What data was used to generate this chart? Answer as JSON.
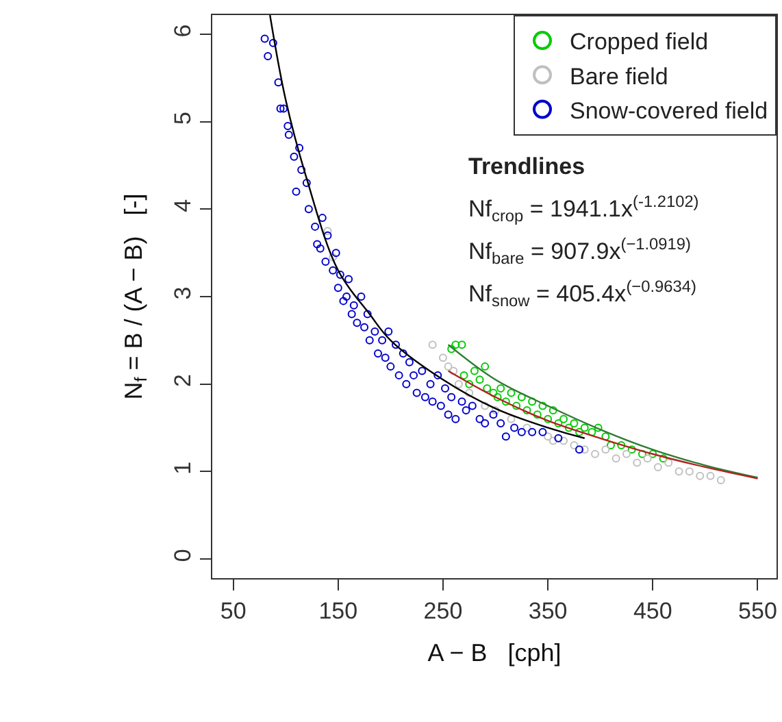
{
  "chart_data": {
    "type": "scatter",
    "xlabel": "A − B   [cph]",
    "ylabel": "N$_{f}$ = B / (A − B)   [-]",
    "annotations": [
      "Trendlines",
      "Nf$_{crop}$ = 1941.1x$^{(-1.2102)}$",
      "Nf$_{bare}$ = 907.9x$^{(−1.0919)}$",
      "Nf$_{snow}$ = 405.4x$^{(−0.9634)}$"
    ],
    "xlim": [
      30,
      568
    ],
    "ylim": [
      -0.22,
      6.22
    ],
    "xticks": [
      50,
      150,
      250,
      350,
      450,
      550
    ],
    "yticks": [
      0,
      1,
      2,
      3,
      4,
      5,
      6
    ],
    "legend": "top right",
    "series": [
      {
        "name": "Cropped field",
        "marker": "circle",
        "color": "#00cc00",
        "x": [
          258,
          262,
          268,
          270,
          275,
          280,
          285,
          290,
          292,
          298,
          302,
          305,
          310,
          315,
          320,
          325,
          330,
          335,
          340,
          345,
          350,
          355,
          360,
          365,
          370,
          375,
          380,
          385,
          392,
          398,
          405,
          410,
          420,
          430,
          440,
          450,
          460
        ],
        "values": [
          2.4,
          2.45,
          2.45,
          2.1,
          2.0,
          2.15,
          2.05,
          2.2,
          1.95,
          1.9,
          1.85,
          1.95,
          1.8,
          1.9,
          1.75,
          1.85,
          1.7,
          1.8,
          1.65,
          1.75,
          1.6,
          1.7,
          1.55,
          1.6,
          1.5,
          1.55,
          1.45,
          1.5,
          1.45,
          1.5,
          1.4,
          1.3,
          1.3,
          1.25,
          1.2,
          1.2,
          1.15
        ]
      },
      {
        "name": "Bare field",
        "marker": "circle",
        "color": "#c0c0c0",
        "x": [
          140,
          145,
          240,
          250,
          255,
          260,
          265,
          275,
          290,
          300,
          315,
          330,
          350,
          355,
          365,
          375,
          385,
          395,
          405,
          415,
          425,
          435,
          445,
          455,
          465,
          475,
          485,
          495,
          505,
          515
        ],
        "values": [
          3.75,
          3.45,
          2.45,
          2.3,
          2.2,
          2.15,
          2.0,
          1.9,
          1.75,
          1.7,
          1.6,
          1.5,
          1.4,
          1.35,
          1.35,
          1.3,
          1.25,
          1.2,
          1.25,
          1.15,
          1.2,
          1.1,
          1.15,
          1.05,
          1.1,
          1.0,
          1.0,
          0.95,
          0.95,
          0.9
        ]
      },
      {
        "name": "Snow-covered field",
        "marker": "circle",
        "color": "#0000cc",
        "x": [
          80,
          83,
          88,
          93,
          95,
          98,
          102,
          103,
          108,
          113,
          110,
          115,
          120,
          122,
          128,
          130,
          133,
          135,
          138,
          140,
          145,
          148,
          150,
          152,
          155,
          158,
          160,
          163,
          165,
          168,
          172,
          175,
          178,
          180,
          185,
          188,
          192,
          195,
          198,
          200,
          205,
          208,
          212,
          215,
          218,
          222,
          225,
          230,
          233,
          238,
          240,
          245,
          248,
          252,
          255,
          258,
          262,
          268,
          272,
          278,
          285,
          290,
          298,
          305,
          310,
          318,
          325,
          335,
          345,
          360,
          380
        ],
        "values": [
          5.95,
          5.75,
          5.9,
          5.45,
          5.15,
          5.15,
          4.95,
          4.85,
          4.6,
          4.7,
          4.2,
          4.45,
          4.3,
          4.0,
          3.8,
          3.6,
          3.55,
          3.9,
          3.4,
          3.7,
          3.3,
          3.5,
          3.1,
          3.25,
          2.95,
          3.0,
          3.2,
          2.8,
          2.9,
          2.7,
          3.0,
          2.65,
          2.8,
          2.5,
          2.6,
          2.35,
          2.5,
          2.3,
          2.6,
          2.2,
          2.45,
          2.1,
          2.35,
          2.0,
          2.25,
          2.1,
          1.9,
          2.15,
          1.85,
          2.0,
          1.8,
          2.1,
          1.75,
          1.95,
          1.65,
          1.85,
          1.6,
          1.8,
          1.7,
          1.75,
          1.6,
          1.55,
          1.65,
          1.55,
          1.4,
          1.5,
          1.45,
          1.45,
          1.45,
          1.38,
          1.25
        ]
      },
      {
        "type": "line",
        "marker": "none",
        "color": "#2e7d32",
        "x": [
          255,
          300,
          350,
          400,
          450,
          500,
          550
        ],
        "values": [
          2.45,
          2.05,
          1.75,
          1.48,
          1.25,
          1.07,
          0.93
        ]
      },
      {
        "type": "line",
        "marker": "none",
        "color": "#b22222",
        "x": [
          255,
          300,
          350,
          400,
          450,
          500,
          550
        ],
        "values": [
          2.15,
          1.85,
          1.58,
          1.38,
          1.2,
          1.05,
          0.92
        ]
      },
      {
        "type": "line",
        "marker": "none",
        "color": "#000000",
        "x": [
          85,
          100,
          120,
          150,
          180,
          200,
          250,
          300,
          350,
          385
        ],
        "values": [
          6.22,
          5.25,
          4.35,
          3.3,
          2.8,
          2.5,
          2.05,
          1.72,
          1.5,
          1.38
        ]
      }
    ]
  }
}
